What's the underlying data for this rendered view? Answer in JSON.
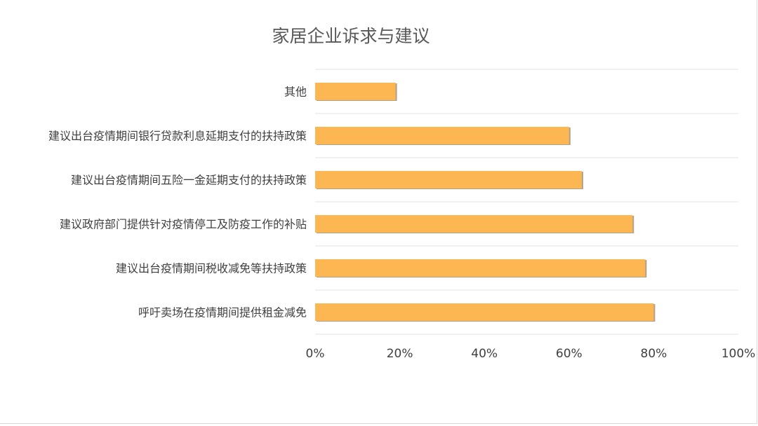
{
  "chart_data": {
    "type": "bar",
    "orientation": "horizontal",
    "title": "家居企业诉求与建议",
    "categories": [
      "其他",
      "建议出台疫情期间银行贷款利息延期支付的扶持政策",
      "建议出台疫情期间五险一金延期支付的扶持政策",
      "建议政府部门提供针对疫情停工及防疫工作的补贴",
      "建议出台疫情期间税收减免等扶持政策",
      "呼吁卖场在疫情期间提供租金减免"
    ],
    "values": [
      19,
      60,
      63,
      75,
      78,
      80
    ],
    "xlim": [
      0,
      100
    ],
    "xticks": [
      "0%",
      "20%",
      "40%",
      "60%",
      "80%",
      "100%"
    ],
    "grid": "horizontal",
    "colors": {
      "bar": "#FDB752",
      "bar_shadow": "#9e8a6a",
      "grid": "#e3e3e3",
      "text": "#404040",
      "title": "#595959"
    }
  }
}
